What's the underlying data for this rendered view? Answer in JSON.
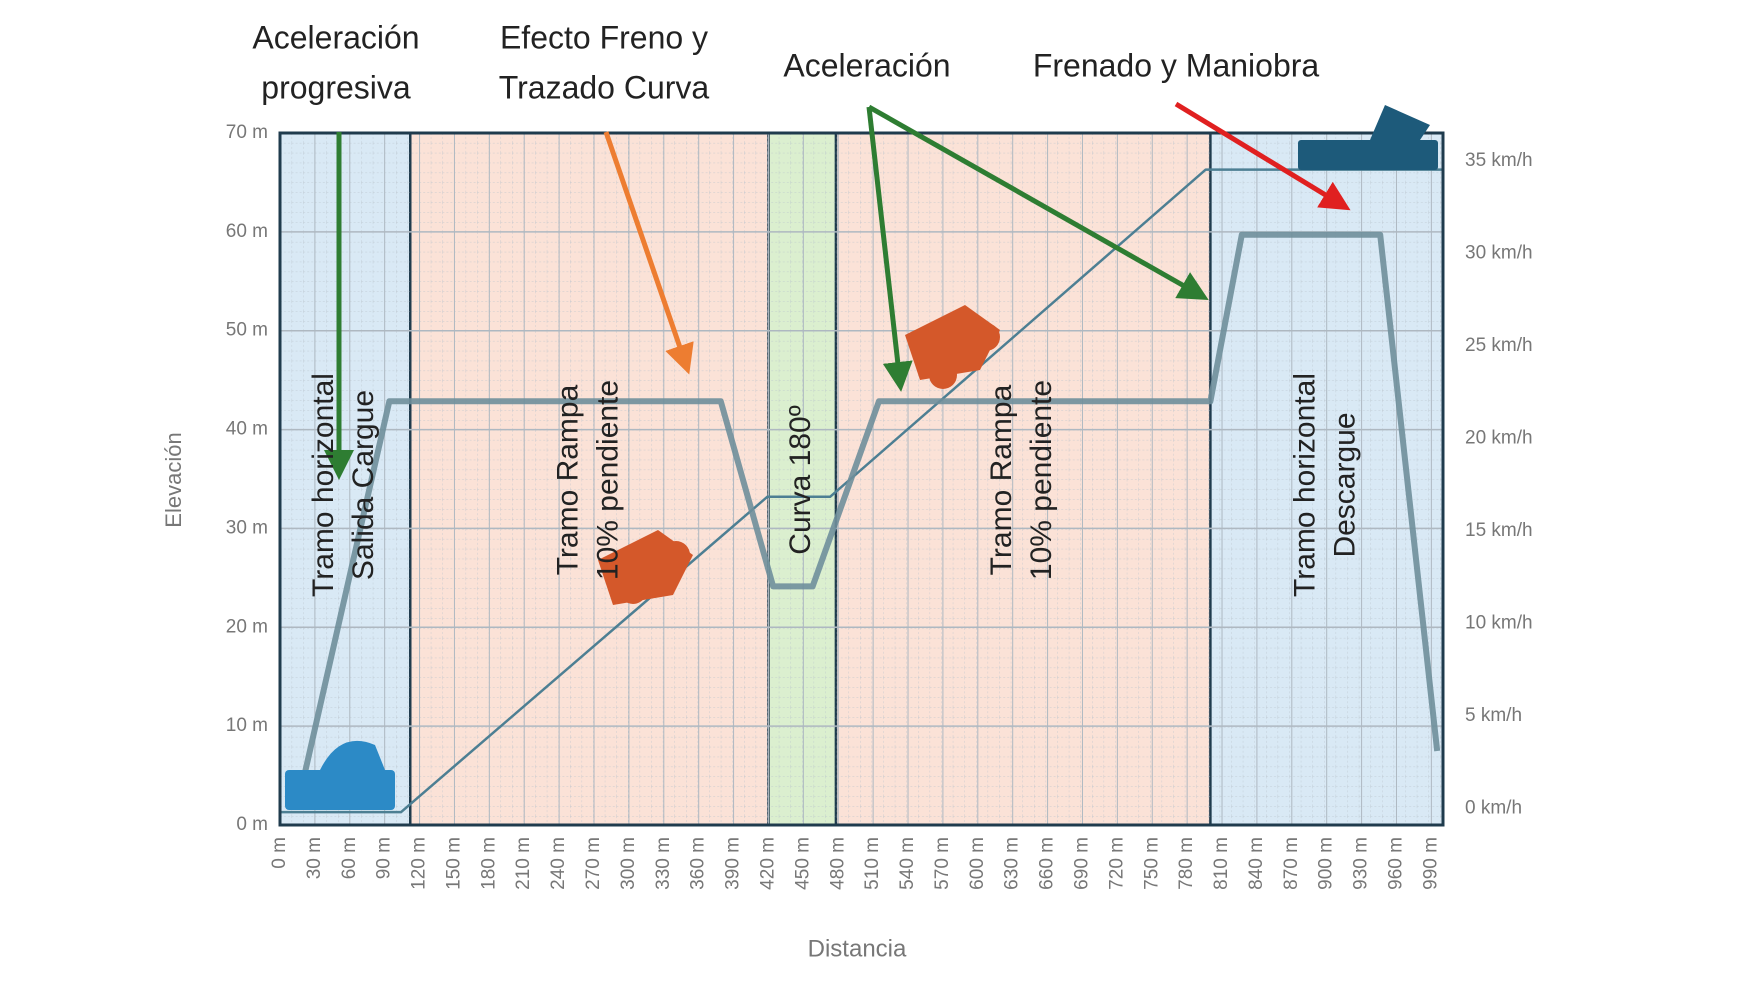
{
  "chart_data": {
    "type": "line",
    "x_label": "Distancia",
    "y_label": "Elevación",
    "xlim": [
      0,
      1000
    ],
    "ylim": [
      0,
      70
    ],
    "y2lim": [
      -0.9,
      36.5
    ],
    "grid": true,
    "xticks": [
      {
        "value": 0,
        "label": "0 m"
      },
      {
        "value": 30,
        "label": "30 m"
      },
      {
        "value": 60,
        "label": "60 m"
      },
      {
        "value": 90,
        "label": "90 m"
      },
      {
        "value": 120,
        "label": "120 m"
      },
      {
        "value": 150,
        "label": "150 m"
      },
      {
        "value": 180,
        "label": "180 m"
      },
      {
        "value": 210,
        "label": "210 m"
      },
      {
        "value": 240,
        "label": "240 m"
      },
      {
        "value": 270,
        "label": "270 m"
      },
      {
        "value": 300,
        "label": "300 m"
      },
      {
        "value": 330,
        "label": "330 m"
      },
      {
        "value": 360,
        "label": "360 m"
      },
      {
        "value": 390,
        "label": "390 m"
      },
      {
        "value": 420,
        "label": "420 m"
      },
      {
        "value": 450,
        "label": "450 m"
      },
      {
        "value": 480,
        "label": "480 m"
      },
      {
        "value": 510,
        "label": "510 m"
      },
      {
        "value": 540,
        "label": "540 m"
      },
      {
        "value": 570,
        "label": "570 m"
      },
      {
        "value": 600,
        "label": "600 m"
      },
      {
        "value": 630,
        "label": "630 m"
      },
      {
        "value": 660,
        "label": "660 m"
      },
      {
        "value": 690,
        "label": "690 m"
      },
      {
        "value": 720,
        "label": "720 m"
      },
      {
        "value": 750,
        "label": "750 m"
      },
      {
        "value": 780,
        "label": "780 m"
      },
      {
        "value": 810,
        "label": "810 m"
      },
      {
        "value": 840,
        "label": "840 m"
      },
      {
        "value": 870,
        "label": "870 m"
      },
      {
        "value": 900,
        "label": "900 m"
      },
      {
        "value": 930,
        "label": "930 m"
      },
      {
        "value": 960,
        "label": "960 m"
      },
      {
        "value": 990,
        "label": "990 m"
      }
    ],
    "yticks": [
      {
        "value": 0,
        "label": "0 m"
      },
      {
        "value": 10,
        "label": "10 m"
      },
      {
        "value": 20,
        "label": "20 m"
      },
      {
        "value": 30,
        "label": "30 m"
      },
      {
        "value": 40,
        "label": "40 m"
      },
      {
        "value": 50,
        "label": "50 m"
      },
      {
        "value": 60,
        "label": "60 m"
      },
      {
        "value": 70,
        "label": "70 m"
      }
    ],
    "y2ticks": [
      {
        "value": 0,
        "label": "0 km/h"
      },
      {
        "value": 5,
        "label": "5 km/h"
      },
      {
        "value": 10,
        "label": "10 km/h"
      },
      {
        "value": 15,
        "label": "15 km/h"
      },
      {
        "value": 20,
        "label": "20 km/h"
      },
      {
        "value": 25,
        "label": "25 km/h"
      },
      {
        "value": 30,
        "label": "30 km/h"
      },
      {
        "value": 35,
        "label": "35 km/h"
      }
    ],
    "zones": [
      {
        "start": 0,
        "end": 112,
        "color": "#d9e9f5",
        "lines": [
          "Tramo horizontal",
          "Salida Cargue"
        ]
      },
      {
        "start": 112,
        "end": 420,
        "color": "#fbe2d7",
        "lines": [
          "Tramo Rampa",
          "10% pendiente"
        ]
      },
      {
        "start": 420,
        "end": 478,
        "color": "#dbefcf",
        "lines": [
          "Curva 180º"
        ]
      },
      {
        "start": 478,
        "end": 800,
        "color": "#fbe2d7",
        "lines": [
          "Tramo Rampa",
          "10% pendiente"
        ]
      },
      {
        "start": 800,
        "end": 1000,
        "color": "#d9e9f5",
        "lines": [
          "Tramo horizontal",
          "Descargue"
        ]
      }
    ],
    "annotations": [
      {
        "lines": [
          "Aceleración",
          "progresiva"
        ]
      },
      {
        "lines": [
          "Efecto Freno y",
          "Trazado Curva"
        ]
      },
      {
        "lines": [
          "Aceleración"
        ]
      },
      {
        "lines": [
          "Frenado y Maniobra"
        ]
      }
    ],
    "series": [
      {
        "color": "#4d7f93",
        "x": [
          0,
          104,
          419,
          473,
          796,
          1000
        ],
        "values": [
          1.3,
          1.3,
          33.2,
          33.2,
          66.3,
          66.3
        ]
      },
      {
        "color": "#6f8f9b",
        "axis": "y2",
        "x": [
          17,
          94,
          379,
          424,
          458,
          515,
          800,
          827,
          946,
          995
        ],
        "values": [
          0.7,
          22,
          22,
          12,
          12,
          22,
          22,
          31,
          31,
          3.1
        ]
      }
    ]
  }
}
